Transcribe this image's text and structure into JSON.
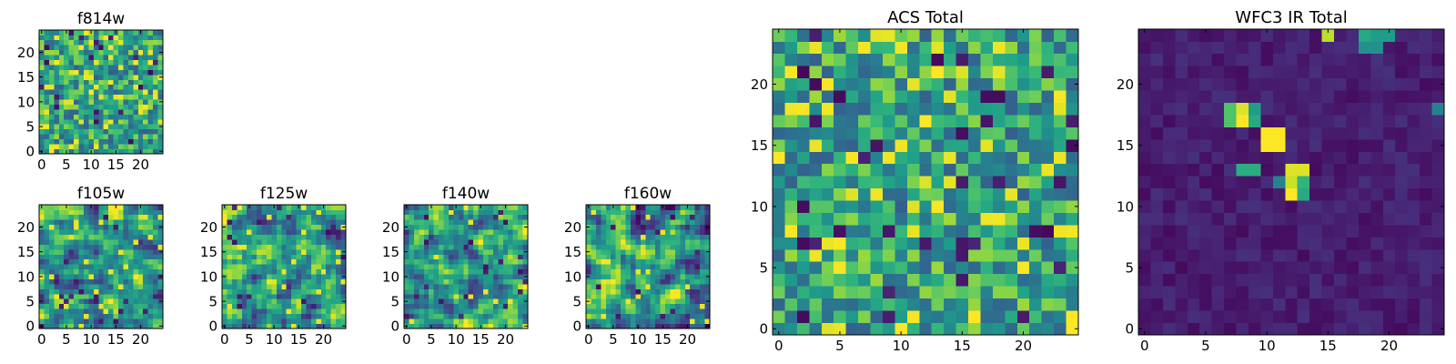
{
  "chart_data": [
    {
      "type": "heatmap",
      "title": "f814w",
      "xlabel": "",
      "ylabel": "",
      "grid_size": [
        25,
        25
      ],
      "xlim": [
        -0.5,
        24.5
      ],
      "ylim": [
        -0.5,
        24.5
      ],
      "xticks": [
        0,
        5,
        10,
        15,
        20
      ],
      "yticks": [
        0,
        5,
        10,
        15,
        20
      ],
      "colormap": "viridis",
      "pattern": "noise",
      "seed": 11
    },
    {
      "type": "heatmap",
      "title": "f105w",
      "xlabel": "",
      "ylabel": "",
      "grid_size": [
        25,
        25
      ],
      "xlim": [
        -0.5,
        24.5
      ],
      "ylim": [
        -0.5,
        24.5
      ],
      "xticks": [
        0,
        5,
        10,
        15,
        20
      ],
      "yticks": [
        0,
        5,
        10,
        15,
        20
      ],
      "colormap": "viridis",
      "pattern": "smooth_noise",
      "seed": 23
    },
    {
      "type": "heatmap",
      "title": "f125w",
      "xlabel": "",
      "ylabel": "",
      "grid_size": [
        25,
        25
      ],
      "xlim": [
        -0.5,
        24.5
      ],
      "ylim": [
        -0.5,
        24.5
      ],
      "xticks": [
        0,
        5,
        10,
        15,
        20
      ],
      "yticks": [
        0,
        5,
        10,
        15,
        20
      ],
      "colormap": "viridis",
      "pattern": "smooth_noise",
      "seed": 37
    },
    {
      "type": "heatmap",
      "title": "f140w",
      "xlabel": "",
      "ylabel": "",
      "grid_size": [
        25,
        25
      ],
      "xlim": [
        -0.5,
        24.5
      ],
      "ylim": [
        -0.5,
        24.5
      ],
      "xticks": [
        0,
        5,
        10,
        15,
        20
      ],
      "yticks": [
        0,
        5,
        10,
        15,
        20
      ],
      "colormap": "viridis",
      "pattern": "smooth_noise",
      "seed": 41
    },
    {
      "type": "heatmap",
      "title": "f160w",
      "xlabel": "",
      "ylabel": "",
      "grid_size": [
        25,
        25
      ],
      "xlim": [
        -0.5,
        24.5
      ],
      "ylim": [
        -0.5,
        24.5
      ],
      "xticks": [
        0,
        5,
        10,
        15,
        20
      ],
      "yticks": [
        0,
        5,
        10,
        15,
        20
      ],
      "colormap": "viridis",
      "pattern": "smooth_noise",
      "seed": 53
    },
    {
      "type": "heatmap",
      "title": "ACS Total",
      "xlabel": "",
      "ylabel": "",
      "grid_size": [
        25,
        25
      ],
      "xlim": [
        -0.5,
        24.5
      ],
      "ylim": [
        -0.5,
        24.5
      ],
      "xticks": [
        0,
        5,
        10,
        15,
        20
      ],
      "yticks": [
        0,
        5,
        10,
        15,
        20
      ],
      "colormap": "viridis",
      "pattern": "noise",
      "seed": 67
    },
    {
      "type": "heatmap",
      "title": "WFC3 IR Total",
      "xlabel": "",
      "ylabel": "",
      "grid_size": [
        25,
        25
      ],
      "xlim": [
        -0.5,
        24.5
      ],
      "ylim": [
        -0.5,
        24.5
      ],
      "xticks": [
        0,
        5,
        10,
        15,
        20
      ],
      "yticks": [
        0,
        5,
        10,
        15,
        20
      ],
      "colormap": "viridis",
      "pattern": "low_background",
      "seed": 79,
      "bright_cells": [
        {
          "x": 8,
          "y": 17,
          "value": 1.0
        },
        {
          "x": 8,
          "y": 18,
          "value": 0.95
        },
        {
          "x": 7,
          "y": 18,
          "value": 0.72
        },
        {
          "x": 7,
          "y": 17,
          "value": 0.72
        },
        {
          "x": 9,
          "y": 17,
          "value": 0.6
        },
        {
          "x": 9,
          "y": 18,
          "value": 0.55
        },
        {
          "x": 10,
          "y": 15,
          "value": 1.0
        },
        {
          "x": 11,
          "y": 15,
          "value": 1.0
        },
        {
          "x": 10,
          "y": 16,
          "value": 1.0
        },
        {
          "x": 11,
          "y": 16,
          "value": 1.0
        },
        {
          "x": 8,
          "y": 13,
          "value": 0.62
        },
        {
          "x": 9,
          "y": 13,
          "value": 0.62
        },
        {
          "x": 12,
          "y": 13,
          "value": 0.95
        },
        {
          "x": 13,
          "y": 13,
          "value": 0.95
        },
        {
          "x": 12,
          "y": 12,
          "value": 0.92
        },
        {
          "x": 12,
          "y": 11,
          "value": 1.0
        },
        {
          "x": 13,
          "y": 12,
          "value": 0.65
        },
        {
          "x": 13,
          "y": 11,
          "value": 0.6
        },
        {
          "x": 11,
          "y": 12,
          "value": 0.45
        },
        {
          "x": 15,
          "y": 24,
          "value": 0.9
        },
        {
          "x": 18,
          "y": 24,
          "value": 0.6
        },
        {
          "x": 19,
          "y": 24,
          "value": 0.55
        },
        {
          "x": 20,
          "y": 24,
          "value": 0.55
        },
        {
          "x": 18,
          "y": 23,
          "value": 0.5
        },
        {
          "x": 19,
          "y": 23,
          "value": 0.5
        },
        {
          "x": 24,
          "y": 18,
          "value": 0.45
        }
      ]
    }
  ]
}
